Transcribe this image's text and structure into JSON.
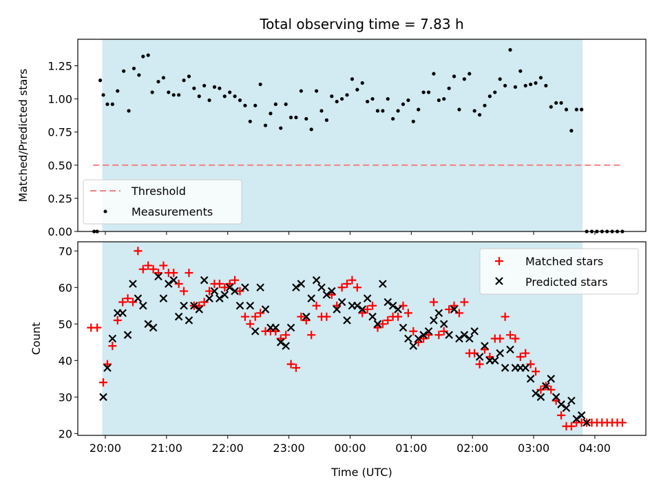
{
  "chart_data": {
    "type": "scatter",
    "title": "Total observing time = 7.83 h",
    "xlabel": "Time (UTC)",
    "x_ticks": [
      "20:00",
      "21:00",
      "22:00",
      "23:00",
      "00:00",
      "01:00",
      "02:00",
      "03:00",
      "04:00"
    ],
    "xlim": [
      "19:33",
      "04:50"
    ],
    "shaded_interval": {
      "start": "19:57",
      "end": "03:48",
      "color": "#add8e6"
    },
    "panels": [
      {
        "id": "ratio",
        "ylabel": "Matched/Predicted stars",
        "ylim": [
          0,
          1.45
        ],
        "y_ticks": [
          "0.00",
          "0.25",
          "0.50",
          "0.75",
          "1.00",
          "1.25"
        ],
        "legend": {
          "location": "lower left",
          "entries": [
            "Threshold",
            "Measurements"
          ]
        },
        "threshold": {
          "name": "Threshold",
          "y": 0.5,
          "x_start": "19:48",
          "x_end": "04:28",
          "color": "#f08080",
          "style": "dashed"
        },
        "series": [
          {
            "name": "Measurements",
            "marker": "dot",
            "color": "#000000",
            "x": [
              "19:49",
              "19:52",
              "19:55",
              "19:58",
              "20:02",
              "20:07",
              "20:12",
              "20:18",
              "20:23",
              "20:28",
              "20:33",
              "20:37",
              "20:42",
              "20:46",
              "20:52",
              "20:57",
              "21:02",
              "21:07",
              "21:12",
              "21:17",
              "21:22",
              "21:27",
              "21:32",
              "21:37",
              "21:42",
              "21:47",
              "21:52",
              "21:57",
              "22:02",
              "22:07",
              "22:12",
              "22:17",
              "22:22",
              "22:27",
              "22:32",
              "22:37",
              "22:42",
              "22:47",
              "22:52",
              "22:57",
              "23:02",
              "23:07",
              "23:12",
              "23:17",
              "23:22",
              "23:27",
              "23:32",
              "23:37",
              "23:42",
              "23:47",
              "23:52",
              "23:57",
              "00:02",
              "00:07",
              "00:12",
              "00:17",
              "00:22",
              "00:27",
              "00:32",
              "00:37",
              "00:42",
              "00:47",
              "00:52",
              "00:57",
              "01:02",
              "01:07",
              "01:12",
              "01:17",
              "01:22",
              "01:27",
              "01:32",
              "01:37",
              "01:42",
              "01:47",
              "01:52",
              "01:57",
              "02:02",
              "02:07",
              "02:12",
              "02:17",
              "02:22",
              "02:27",
              "02:32",
              "02:37",
              "02:42",
              "02:47",
              "02:52",
              "02:57",
              "03:02",
              "03:07",
              "03:12",
              "03:17",
              "03:22",
              "03:27",
              "03:32",
              "03:37",
              "03:42",
              "03:47",
              "03:52",
              "03:57",
              "04:02",
              "04:07",
              "04:12",
              "04:17",
              "04:22",
              "04:27"
            ],
            "y": [
              0,
              0,
              1.14,
              1.03,
              0.96,
              0.96,
              1.06,
              1.21,
              0.91,
              1.23,
              1.18,
              1.32,
              1.33,
              1.05,
              1.13,
              1.16,
              1.05,
              1.03,
              1.03,
              1.14,
              1.17,
              1.08,
              1.02,
              1.1,
              0.99,
              1.09,
              1.08,
              1.02,
              1.05,
              1.02,
              0.99,
              0.95,
              0.83,
              0.95,
              1.11,
              0.8,
              0.89,
              0.96,
              0.78,
              0.96,
              0.86,
              0.86,
              1.06,
              0.85,
              0.77,
              1.06,
              0.91,
              0.84,
              1.02,
              0.98,
              1.0,
              1.03,
              1.15,
              1.07,
              1.12,
              0.98,
              1.0,
              0.91,
              0.91,
              1.0,
              0.85,
              0.91,
              0.96,
              0.99,
              0.83,
              0.92,
              1.05,
              1.05,
              1.19,
              0.99,
              1.0,
              1.08,
              1.17,
              0.92,
              1.15,
              1.19,
              0.91,
              0.88,
              0.95,
              1.02,
              1.05,
              1.15,
              1.1,
              1.37,
              1.09,
              1.21,
              1.1,
              1.11,
              1.12,
              1.16,
              1.1,
              0.94,
              0.97,
              0.97,
              0.92,
              0.76,
              0.92,
              0.92,
              0,
              0,
              0,
              0,
              0,
              0,
              0,
              0
            ]
          }
        ]
      },
      {
        "id": "counts",
        "ylabel": "Count",
        "ylim": [
          19.5,
          72.5
        ],
        "y_ticks": [
          "20",
          "30",
          "40",
          "50",
          "60",
          "70"
        ],
        "legend": {
          "location": "upper right",
          "entries": [
            "Matched stars",
            "Predicted stars"
          ]
        },
        "series": [
          {
            "name": "Matched stars",
            "marker": "plus",
            "color": "#ff0000",
            "x": [
              "19:46",
              "19:52",
              "19:58",
              "20:02",
              "20:07",
              "20:12",
              "20:17",
              "20:22",
              "20:27",
              "20:32",
              "20:37",
              "20:42",
              "20:47",
              "20:52",
              "20:57",
              "21:02",
              "21:07",
              "21:12",
              "21:17",
              "21:22",
              "21:27",
              "21:32",
              "21:37",
              "21:42",
              "21:47",
              "21:52",
              "21:57",
              "22:02",
              "22:07",
              "22:12",
              "22:17",
              "22:22",
              "22:27",
              "22:32",
              "22:37",
              "22:42",
              "22:47",
              "22:52",
              "22:57",
              "23:02",
              "23:07",
              "23:12",
              "23:17",
              "23:22",
              "23:27",
              "23:32",
              "23:37",
              "23:42",
              "23:47",
              "23:52",
              "23:57",
              "00:02",
              "00:07",
              "00:12",
              "00:17",
              "00:22",
              "00:27",
              "00:32",
              "00:37",
              "00:42",
              "00:47",
              "00:52",
              "00:57",
              "01:02",
              "01:07",
              "01:12",
              "01:17",
              "01:22",
              "01:27",
              "01:32",
              "01:37",
              "01:42",
              "01:47",
              "01:52",
              "01:57",
              "02:02",
              "02:07",
              "02:12",
              "02:17",
              "02:22",
              "02:27",
              "02:32",
              "02:37",
              "02:42",
              "02:47",
              "02:52",
              "02:57",
              "03:02",
              "03:07",
              "03:12",
              "03:17",
              "03:22",
              "03:27",
              "03:32",
              "03:37",
              "03:42",
              "03:47",
              "03:52",
              "03:57",
              "04:02",
              "04:07",
              "04:12",
              "04:17",
              "04:22",
              "04:27"
            ],
            "y": [
              49,
              49,
              34,
              39,
              44,
              51,
              56,
              57,
              56,
              70,
              65,
              66,
              65,
              64,
              66,
              64,
              64,
              61,
              59,
              64,
              55,
              55,
              56,
              59,
              61,
              61,
              60,
              61,
              62,
              59,
              52,
              50,
              52,
              53,
              48,
              48,
              48,
              46,
              47,
              39,
              38,
              52,
              51,
              47,
              55,
              52,
              52,
              58,
              55,
              60,
              61,
              62,
              60,
              53,
              54,
              55,
              49,
              50,
              51,
              52,
              52,
              55,
              53,
              48,
              45,
              46,
              47,
              56,
              47,
              48,
              54,
              55,
              53,
              56,
              42,
              42,
              39,
              43,
              41,
              46,
              46,
              52,
              47,
              46,
              41,
              42,
              39,
              37,
              32,
              33,
              32,
              29,
              25,
              22,
              22,
              23,
              23,
              23,
              23,
              23,
              23,
              23,
              23,
              23,
              23
            ]
          },
          {
            "name": "Predicted stars",
            "marker": "x",
            "color": "#000000",
            "x": [
              "19:58",
              "20:02",
              "20:07",
              "20:12",
              "20:17",
              "20:22",
              "20:27",
              "20:32",
              "20:37",
              "20:42",
              "20:47",
              "20:52",
              "20:57",
              "21:02",
              "21:07",
              "21:12",
              "21:17",
              "21:22",
              "21:27",
              "21:32",
              "21:37",
              "21:42",
              "21:47",
              "21:52",
              "21:57",
              "22:02",
              "22:07",
              "22:12",
              "22:17",
              "22:22",
              "22:27",
              "22:32",
              "22:37",
              "22:42",
              "22:47",
              "22:52",
              "22:57",
              "23:02",
              "23:07",
              "23:12",
              "23:17",
              "23:22",
              "23:27",
              "23:32",
              "23:37",
              "23:42",
              "23:47",
              "23:52",
              "23:57",
              "00:02",
              "00:07",
              "00:12",
              "00:17",
              "00:22",
              "00:27",
              "00:32",
              "00:37",
              "00:42",
              "00:47",
              "00:52",
              "00:57",
              "01:02",
              "01:07",
              "01:12",
              "01:17",
              "01:22",
              "01:27",
              "01:32",
              "01:37",
              "01:42",
              "01:47",
              "01:52",
              "01:57",
              "02:02",
              "02:07",
              "02:12",
              "02:17",
              "02:22",
              "02:27",
              "02:32",
              "02:37",
              "02:42",
              "02:47",
              "02:52",
              "02:57",
              "03:02",
              "03:07",
              "03:12",
              "03:17",
              "03:22",
              "03:27",
              "03:32",
              "03:37",
              "03:42",
              "03:47",
              "03:52"
            ],
            "y": [
              30,
              38,
              46,
              53,
              53,
              47,
              61,
              57,
              55,
              50,
              49,
              63,
              57,
              61,
              62,
              52,
              55,
              51,
              55,
              54,
              62,
              57,
              59,
              57,
              58,
              60,
              59,
              55,
              60,
              55,
              48,
              60,
              54,
              49,
              49,
              45,
              44,
              49,
              60,
              61,
              52,
              57,
              62,
              60,
              58,
              59,
              54,
              56,
              51,
              55,
              55,
              54,
              57,
              52,
              50,
              61,
              56,
              55,
              54,
              49,
              46,
              44,
              46,
              47,
              48,
              51,
              53,
              50,
              47,
              54,
              46,
              47,
              46,
              48,
              41,
              44,
              40,
              40,
              42,
              38,
              43,
              38,
              38,
              38,
              35,
              31,
              30,
              33,
              35,
              30,
              28,
              27,
              29,
              24,
              25,
              23
            ]
          }
        ]
      }
    ]
  }
}
